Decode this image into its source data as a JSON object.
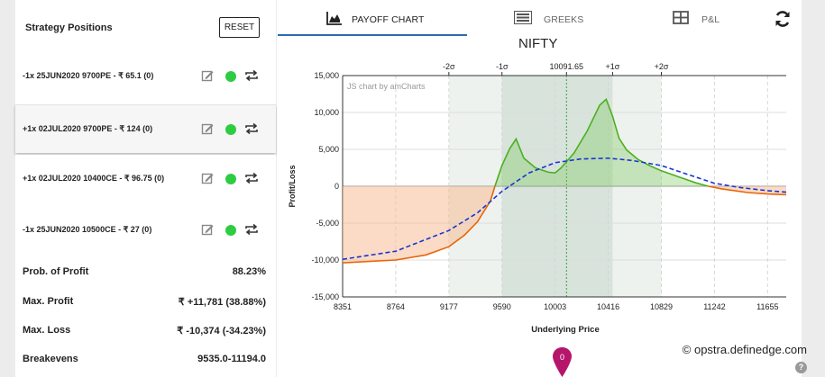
{
  "left_panel": {
    "title": "Strategy Positions",
    "reset_label": "RESET",
    "positions": [
      {
        "label": "-1x  25JUN2020  9700PE  - ₹ 65.1  (0)"
      },
      {
        "label": "+1x  02JUL2020  9700PE  - ₹ 124  (0)"
      },
      {
        "label": "+1x  02JUL2020  10400CE  - ₹ 96.75  (0)"
      },
      {
        "label": "-1x  25JUN2020  10500CE  - ₹ 27  (0)"
      }
    ],
    "stats": [
      {
        "label": "Prob. of Profit",
        "value": "88.23%"
      },
      {
        "label": "Max. Profit",
        "value": "₹ +11,781 (38.88%)"
      },
      {
        "label": "Max. Loss",
        "value": "₹ -10,374 (-34.23%)"
      },
      {
        "label": "Breakevens",
        "value": "9535.0-11194.0"
      }
    ]
  },
  "tabs": [
    {
      "label": "PAYOFF CHART",
      "icon": "area-chart-icon",
      "active": true
    },
    {
      "label": "GREEKS",
      "icon": "list-icon",
      "active": false
    },
    {
      "label": "P&L",
      "icon": "table-icon",
      "active": false
    }
  ],
  "footer": {
    "brand": "© opstra.definedge.com",
    "help": "?",
    "pin_label": "0"
  },
  "chart_data": {
    "type": "area",
    "title": "NIFTY",
    "watermark": "JS chart by amCharts",
    "xlabel": "Underlying Price",
    "ylabel": "Profit/Loss",
    "x_ticks": [
      "8351",
      "8764",
      "9177",
      "9590",
      "10003",
      "10416",
      "10829",
      "11242",
      "11655"
    ],
    "x_range": [
      8351,
      11800
    ],
    "y_ticks": [
      "15,000",
      "10,000",
      "5,000",
      "0",
      "-5,000",
      "-10,000",
      "-15,000"
    ],
    "y_range": [
      -15000,
      15000
    ],
    "sigma_labels": [
      "-2σ",
      "-1σ",
      "10091.65",
      "+1σ",
      "+2σ"
    ],
    "sigma_values": [
      9177,
      9590,
      10091.65,
      10450,
      10829
    ],
    "spot": 10091.65,
    "colors": {
      "profit": "#4caf20",
      "loss": "#e8650a",
      "target": "#1a33d6",
      "band1": "#d7e3db",
      "band2": "#eef2ef"
    },
    "series": [
      {
        "style": "expiry-payoff",
        "x": [
          8351,
          8764,
          9000,
          9177,
          9300,
          9400,
          9500,
          9535,
          9590,
          9650,
          9700,
          9760,
          9850,
          9950,
          10003,
          10050,
          10150,
          10250,
          10350,
          10400,
          10450,
          10500,
          10560,
          10650,
          10750,
          10829,
          10950,
          11100,
          11194,
          11300,
          11500,
          11655,
          11800
        ],
        "y": [
          -10374,
          -10000,
          -9300,
          -8200,
          -6600,
          -4800,
          -2000,
          0,
          2800,
          5100,
          6400,
          3800,
          2500,
          1900,
          1800,
          2500,
          4500,
          7400,
          11000,
          11781,
          9500,
          6500,
          4900,
          3600,
          2700,
          2100,
          1350,
          450,
          0,
          -350,
          -850,
          -1050,
          -1150
        ]
      },
      {
        "style": "target-day",
        "x": [
          8351,
          8764,
          9177,
          9400,
          9590,
          9800,
          10003,
          10200,
          10416,
          10600,
          10829,
          11000,
          11242,
          11450,
          11655,
          11800
        ],
        "y": [
          -9900,
          -8800,
          -6000,
          -3600,
          -700,
          1800,
          3200,
          3700,
          3800,
          3500,
          2800,
          1800,
          400,
          -200,
          -600,
          -800
        ]
      }
    ]
  }
}
